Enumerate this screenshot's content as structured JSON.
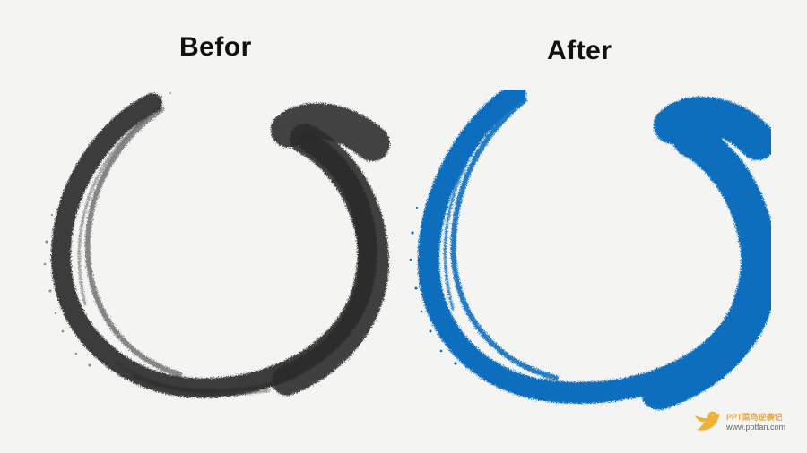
{
  "labels": {
    "before": "Befor",
    "after": "After"
  },
  "colors": {
    "background": "#f4f4f3",
    "before_stroke": "#2b2b2b",
    "after_stroke": "#0a6ebd",
    "watermark_bird": "#f2b134",
    "watermark_text": "#e8a637"
  },
  "watermark": {
    "name": "PPT菜鸟逆袭记",
    "url": "www.pptfan.com",
    "icon": "bird-icon"
  }
}
